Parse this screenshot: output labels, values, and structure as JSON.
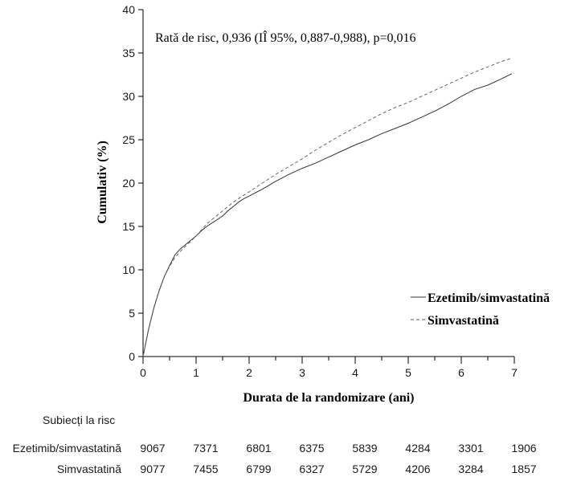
{
  "chart_data": {
    "type": "line",
    "annotation": "Rată de risc, 0,936 (IÎ 95%, 0,887-0,988), p=0,016",
    "xlabel": "Durata de la randomizare (ani)",
    "ylabel": "Cumulativ (%)",
    "xlim": [
      0,
      7
    ],
    "ylim": [
      0,
      40
    ],
    "x_ticks": [
      0,
      1,
      2,
      3,
      4,
      5,
      6,
      7
    ],
    "y_ticks": [
      0,
      5,
      10,
      15,
      20,
      25,
      30,
      35,
      40
    ],
    "legend_position": "right",
    "series": [
      {
        "name": "Ezetimib/simvastatină",
        "style": "solid",
        "color": "#333333",
        "x": [
          0,
          0.05,
          0.1,
          0.2,
          0.3,
          0.4,
          0.5,
          0.6,
          0.7,
          0.8,
          0.9,
          1.0,
          1.1,
          1.2,
          1.3,
          1.4,
          1.5,
          1.6,
          1.7,
          1.8,
          1.9,
          2.0,
          2.25,
          2.5,
          2.75,
          3.0,
          3.25,
          3.5,
          3.75,
          4.0,
          4.25,
          4.5,
          4.75,
          5.0,
          5.25,
          5.5,
          5.75,
          6.0,
          6.25,
          6.5,
          6.75,
          6.95
        ],
        "values": [
          0,
          1.5,
          3.0,
          5.5,
          7.5,
          9.2,
          10.5,
          11.7,
          12.4,
          12.9,
          13.4,
          13.9,
          14.5,
          15.0,
          15.4,
          15.8,
          16.2,
          16.8,
          17.3,
          17.8,
          18.2,
          18.5,
          19.3,
          20.2,
          21.0,
          21.7,
          22.3,
          23.0,
          23.7,
          24.4,
          25.0,
          25.7,
          26.3,
          26.9,
          27.6,
          28.3,
          29.1,
          30.0,
          30.8,
          31.3,
          32.0,
          32.6
        ]
      },
      {
        "name": "Simvastatină",
        "style": "dashed",
        "color": "#666666",
        "x": [
          0,
          0.05,
          0.1,
          0.2,
          0.3,
          0.4,
          0.5,
          0.6,
          0.7,
          0.8,
          0.9,
          1.0,
          1.1,
          1.2,
          1.3,
          1.4,
          1.5,
          1.6,
          1.7,
          1.8,
          1.9,
          2.0,
          2.25,
          2.5,
          2.75,
          3.0,
          3.25,
          3.5,
          3.75,
          4.0,
          4.25,
          4.5,
          4.75,
          5.0,
          5.25,
          5.5,
          5.75,
          6.0,
          6.25,
          6.5,
          6.75,
          6.95
        ],
        "values": [
          0,
          1.6,
          3.1,
          5.6,
          7.6,
          9.2,
          10.4,
          11.4,
          12.1,
          12.7,
          13.3,
          13.9,
          14.6,
          15.3,
          15.8,
          16.3,
          16.8,
          17.3,
          17.8,
          18.2,
          18.6,
          19.0,
          20.0,
          21.0,
          21.9,
          22.8,
          23.8,
          24.7,
          25.6,
          26.4,
          27.2,
          28.0,
          28.7,
          29.3,
          30.0,
          30.7,
          31.4,
          32.1,
          32.8,
          33.4,
          34.0,
          34.4
        ]
      }
    ]
  },
  "risk_table": {
    "header": "Subiecți la risc",
    "rows": [
      {
        "label": "Ezetimib/simvastatină",
        "values": [
          "9067",
          "7371",
          "6801",
          "6375",
          "5839",
          "4284",
          "3301",
          "1906"
        ]
      },
      {
        "label": "Simvastatină",
        "values": [
          "9077",
          "7455",
          "6799",
          "6327",
          "5729",
          "4206",
          "3284",
          "1857"
        ]
      }
    ]
  }
}
